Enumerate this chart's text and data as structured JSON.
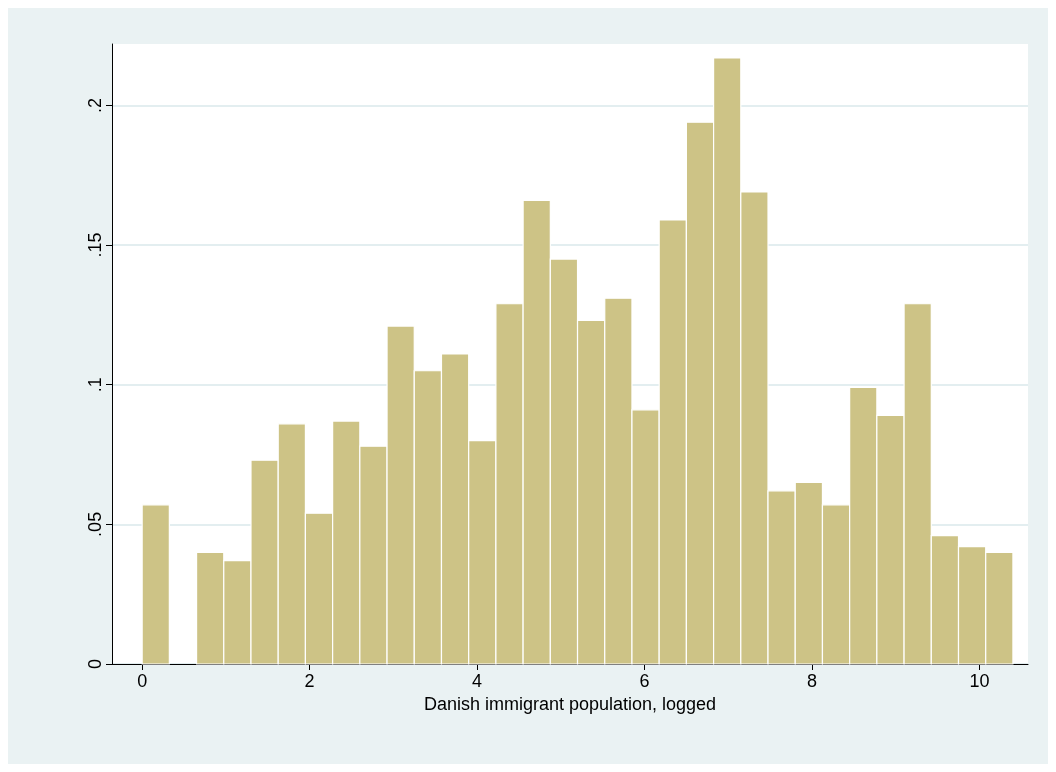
{
  "chart_data": {
    "type": "histogram",
    "xlabel": "Danish immigrant population, logged",
    "bins": [
      0,
      0.325,
      0.65,
      0.975,
      1.3,
      1.625,
      1.95,
      2.275,
      2.6,
      2.925,
      3.25,
      3.575,
      3.9,
      4.225,
      4.55,
      4.875,
      5.2,
      5.525,
      5.85,
      6.175,
      6.5,
      6.825,
      7.15,
      7.475,
      7.8,
      8.125,
      8.45,
      8.775,
      9.1,
      9.425,
      9.75,
      10.075,
      10.4
    ],
    "values": [
      0.057,
      0,
      0.04,
      0.037,
      0.073,
      0.086,
      0.054,
      0.087,
      0.078,
      0.121,
      0.105,
      0.111,
      0.08,
      0.129,
      0.166,
      0.145,
      0.123,
      0.131,
      0.091,
      0.159,
      0.194,
      0.217,
      0.169,
      0.062,
      0.065,
      0.057,
      0.099,
      0.089,
      0.129,
      0.046,
      0.042,
      0.04
    ],
    "color": "#cdc386",
    "xlim": [
      -0.36,
      10.58
    ],
    "ylim": [
      0,
      0.222
    ],
    "xticks": [
      0,
      2,
      4,
      6,
      8,
      10
    ],
    "yticks": [
      0,
      {
        "value": 0.05,
        "label": ".05"
      },
      {
        "value": 0.1,
        "label": ".1"
      },
      {
        "value": 0.15,
        "label": ".15"
      },
      {
        "value": 0.2,
        "label": ".2"
      }
    ],
    "grid": "y"
  }
}
